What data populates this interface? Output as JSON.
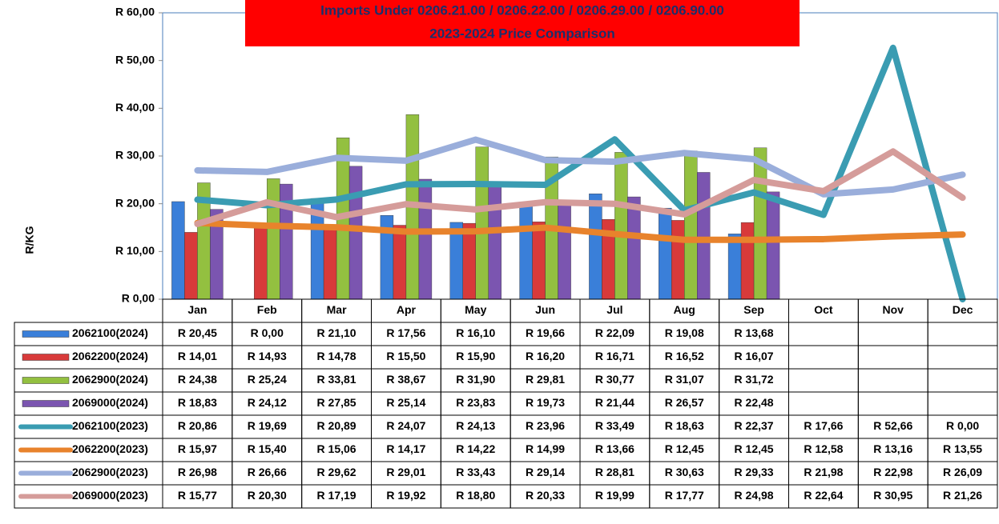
{
  "chart_data": {
    "type": "bar",
    "title": "Imports Under    0206.21.00 / 0206.22.00 / 0206.29.00 / 0206.90.00",
    "subtitle": "2023-2024  Price Comparison",
    "y_label": "R/KG",
    "categories": [
      "Jan",
      "Feb",
      "Mar",
      "Apr",
      "May",
      "Jun",
      "Jul",
      "Aug",
      "Sep",
      "Oct",
      "Nov",
      "Dec"
    ],
    "ylim": [
      0,
      60
    ],
    "yticks": [
      {
        "value": 0,
        "label": "R 0,00"
      },
      {
        "value": 10,
        "label": "R 10,00"
      },
      {
        "value": 20,
        "label": "R 20,00"
      },
      {
        "value": 30,
        "label": "R 30,00"
      },
      {
        "value": 40,
        "label": "R 40,00"
      },
      {
        "value": 50,
        "label": "R 50,00"
      },
      {
        "value": 60,
        "label": "R 60,00"
      }
    ],
    "grid": false,
    "series": [
      {
        "name": "2062100(2024)",
        "type": "bar",
        "color": "#3a7fd9",
        "values": [
          20.45,
          0,
          21.1,
          17.56,
          16.1,
          19.66,
          22.09,
          19.08,
          13.68,
          null,
          null,
          null
        ],
        "value_labels": [
          "R 20,45",
          "R 0,00",
          "R 21,10",
          "R 17,56",
          "R 16,10",
          "R 19,66",
          "R 22,09",
          "R 19,08",
          "R 13,68",
          null,
          null,
          null
        ]
      },
      {
        "name": "2062200(2024)",
        "type": "bar",
        "color": "#d83a3a",
        "values": [
          14.01,
          14.93,
          14.78,
          15.5,
          15.9,
          16.2,
          16.71,
          16.52,
          16.07,
          null,
          null,
          null
        ],
        "value_labels": [
          "R 14,01",
          "R 14,93",
          "R 14,78",
          "R 15,50",
          "R 15,90",
          "R 16,20",
          "R 16,71",
          "R 16,52",
          "R 16,07",
          null,
          null,
          null
        ]
      },
      {
        "name": "2062900(2024)",
        "type": "bar",
        "color": "#93c040",
        "values": [
          24.38,
          25.24,
          33.81,
          38.67,
          31.9,
          29.81,
          30.77,
          31.07,
          31.72,
          null,
          null,
          null
        ],
        "value_labels": [
          "R 24,38",
          "R 25,24",
          "R 33,81",
          "R 38,67",
          "R 31,90",
          "R 29,81",
          "R 30,77",
          "R 31,07",
          "R 31,72",
          null,
          null,
          null
        ]
      },
      {
        "name": "2069000(2024)",
        "type": "bar",
        "color": "#7b55b0",
        "values": [
          18.83,
          24.12,
          27.85,
          25.14,
          23.83,
          19.73,
          21.44,
          26.57,
          22.48,
          null,
          null,
          null
        ],
        "value_labels": [
          "R 18,83",
          "R 24,12",
          "R 27,85",
          "R 25,14",
          "R 23,83",
          "R 19,73",
          "R 21,44",
          "R 26,57",
          "R 22,48",
          null,
          null,
          null
        ]
      },
      {
        "name": "2062100(2023)",
        "type": "line",
        "color": "#3a9cb2",
        "values": [
          20.86,
          19.69,
          20.89,
          24.07,
          24.13,
          23.96,
          33.49,
          18.63,
          22.37,
          17.66,
          52.66,
          0
        ],
        "value_labels": [
          "R 20,86",
          "R 19,69",
          "R 20,89",
          "R 24,07",
          "R 24,13",
          "R 23,96",
          "R 33,49",
          "R 18,63",
          "R 22,37",
          "R 17,66",
          "R 52,66",
          "R 0,00"
        ]
      },
      {
        "name": "2062200(2023)",
        "type": "line",
        "color": "#e8832c",
        "values": [
          15.97,
          15.4,
          15.06,
          14.17,
          14.22,
          14.99,
          13.66,
          12.45,
          12.45,
          12.58,
          13.16,
          13.55
        ],
        "value_labels": [
          "R 15,97",
          "R 15,40",
          "R 15,06",
          "R 14,17",
          "R 14,22",
          "R 14,99",
          "R 13,66",
          "R 12,45",
          "R 12,45",
          "R 12,58",
          "R 13,16",
          "R 13,55"
        ]
      },
      {
        "name": "2062900(2023)",
        "type": "line",
        "color": "#9aaedb",
        "values": [
          26.98,
          26.66,
          29.62,
          29.01,
          33.43,
          29.14,
          28.81,
          30.63,
          29.33,
          21.98,
          22.98,
          26.09
        ],
        "value_labels": [
          "R 26,98",
          "R 26,66",
          "R 29,62",
          "R 29,01",
          "R 33,43",
          "R 29,14",
          "R 28,81",
          "R 30,63",
          "R 29,33",
          "R 21,98",
          "R 22,98",
          "R 26,09"
        ]
      },
      {
        "name": "2069000(2023)",
        "type": "line",
        "color": "#d59c9a",
        "values": [
          15.77,
          20.3,
          17.19,
          19.92,
          18.8,
          20.33,
          19.99,
          17.77,
          24.98,
          22.64,
          30.95,
          21.26
        ],
        "value_labels": [
          "R 15,77",
          "R 20,30",
          "R 17,19",
          "R 19,92",
          "R 18,80",
          "R 20,33",
          "R 19,99",
          "R 17,77",
          "R 24,98",
          "R 22,64",
          "R 30,95",
          "R 21,26"
        ]
      }
    ]
  }
}
